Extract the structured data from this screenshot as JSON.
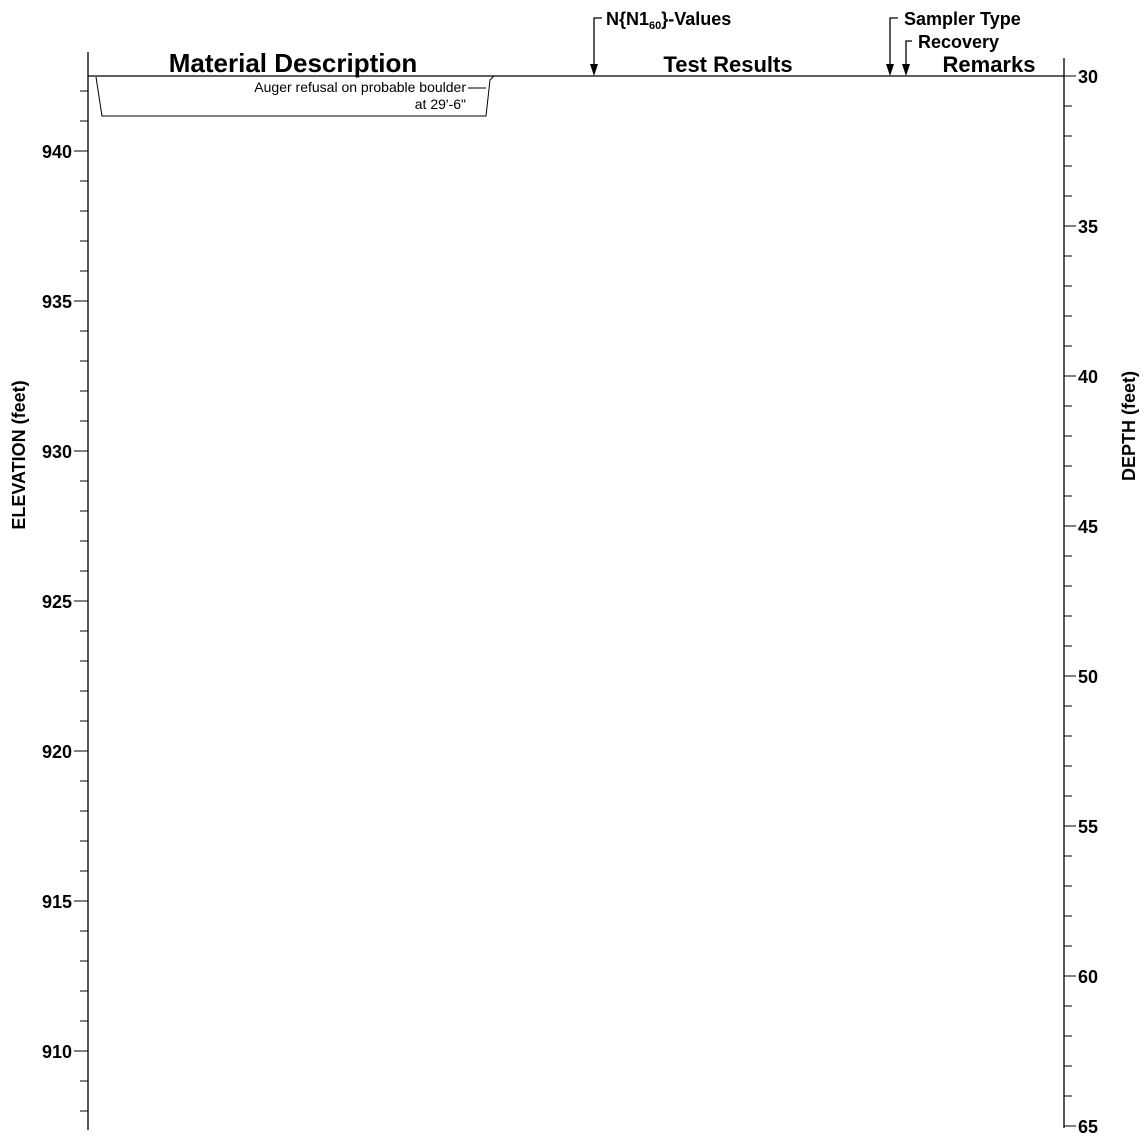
{
  "headers": {
    "material_description": "Material Description",
    "test_results": "Test Results",
    "remarks": "Remarks",
    "n_values_prefix": "N{N1",
    "n_values_sub": "60",
    "n_values_suffix": "}-Values",
    "sampler_type": "Sampler Type",
    "recovery": "Recovery"
  },
  "axes": {
    "elevation_label": "ELEVATION  (feet)",
    "depth_label": "DEPTH (feet)"
  },
  "note": {
    "line1": "Auger refusal on probable boulder",
    "line2": "at 29'-6\""
  },
  "chart_data": {
    "type": "boring-log",
    "elevation_axis": {
      "label": "ELEVATION  (feet)",
      "ticks": [
        940,
        935,
        930,
        925,
        920,
        915,
        910
      ],
      "range": [
        907.5,
        942.5
      ]
    },
    "depth_axis": {
      "label": "DEPTH (feet)",
      "ticks": [
        30,
        35,
        40,
        45,
        50,
        55,
        60,
        65
      ],
      "range": [
        30,
        65
      ]
    },
    "annotations": [
      {
        "text": "Auger refusal on probable boulder at 29'-6\"",
        "depth": 29.5
      }
    ],
    "columns": [
      "Material Description",
      "Test Results",
      "Remarks"
    ]
  }
}
